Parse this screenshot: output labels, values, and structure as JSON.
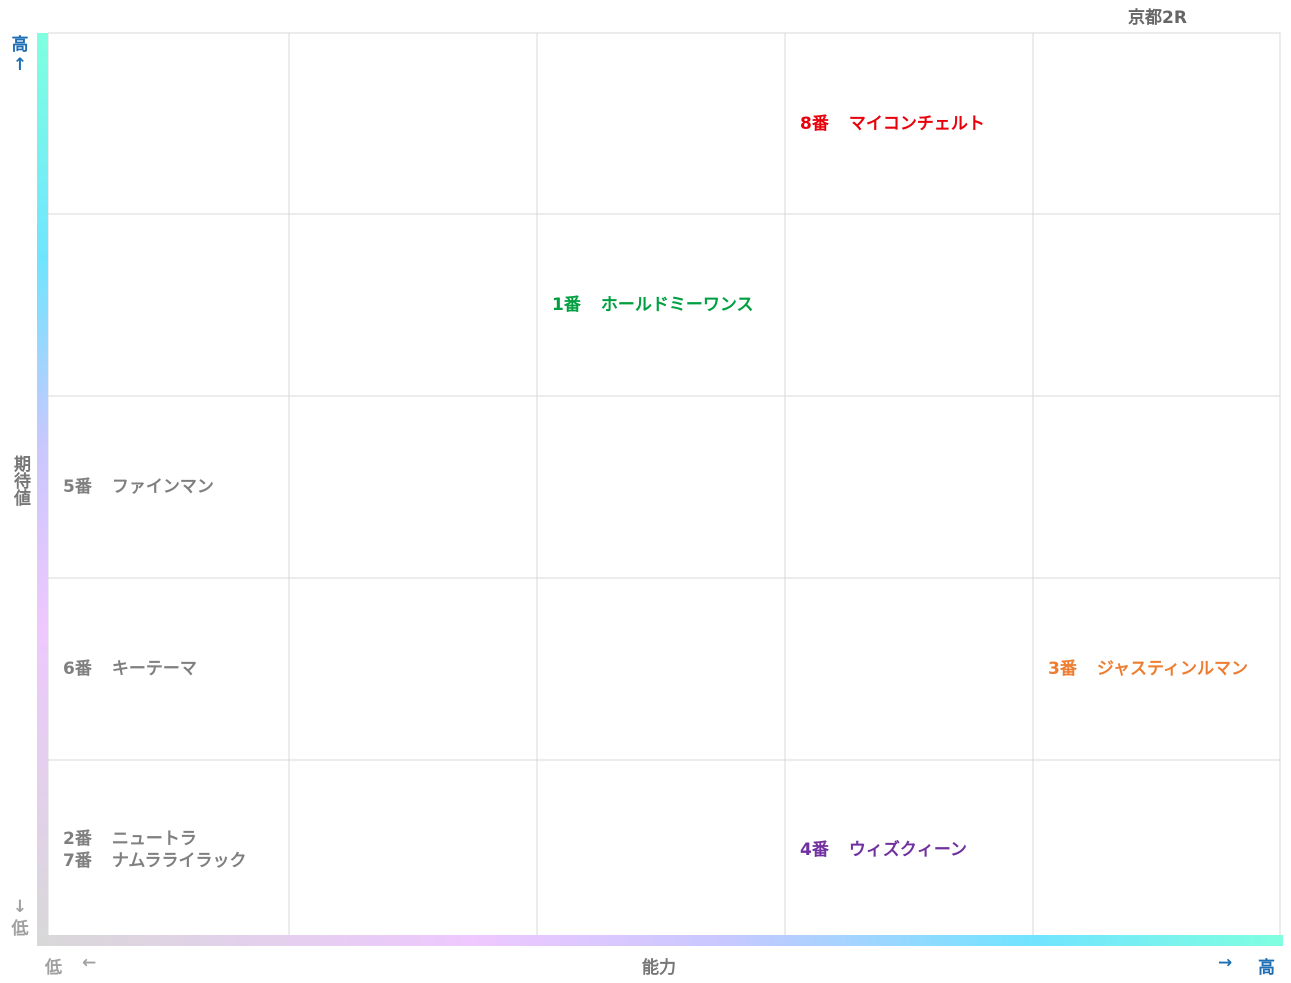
{
  "title": "京都2R",
  "y_axis": {
    "high": "高",
    "high_arrow": "↑",
    "title": "期待値",
    "low_arrow": "↓",
    "low": "低"
  },
  "x_axis": {
    "low": "低",
    "low_arrow": "←",
    "title": "能力",
    "high_arrow": "→",
    "high": "高"
  },
  "grid": {
    "rows": [
      [
        [],
        [],
        [],
        [
          {
            "label": "8番",
            "name": "マイコンチェルト",
            "color": "#e8000b"
          }
        ],
        []
      ],
      [
        [],
        [],
        [
          {
            "label": "1番",
            "name": "ホールドミーワンス",
            "color": "#00a040"
          }
        ],
        [],
        []
      ],
      [
        [
          {
            "label": "5番",
            "name": "ファインマン",
            "color": "#7f7f7f"
          }
        ],
        [],
        [],
        [],
        []
      ],
      [
        [
          {
            "label": "6番",
            "name": "キーテーマ",
            "color": "#7f7f7f"
          }
        ],
        [],
        [],
        [],
        [
          {
            "label": "3番",
            "name": "ジャスティンルマン",
            "color": "#ed7d31"
          }
        ]
      ],
      [
        [
          {
            "label": "2番",
            "name": "ニュートラ",
            "color": "#7f7f7f"
          },
          {
            "label": "7番",
            "name": "ナムラライラック",
            "color": "#7f7f7f"
          }
        ],
        [],
        [],
        [
          {
            "label": "4番",
            "name": "ウィズクィーン",
            "color": "#7030a0"
          }
        ],
        []
      ]
    ]
  }
}
